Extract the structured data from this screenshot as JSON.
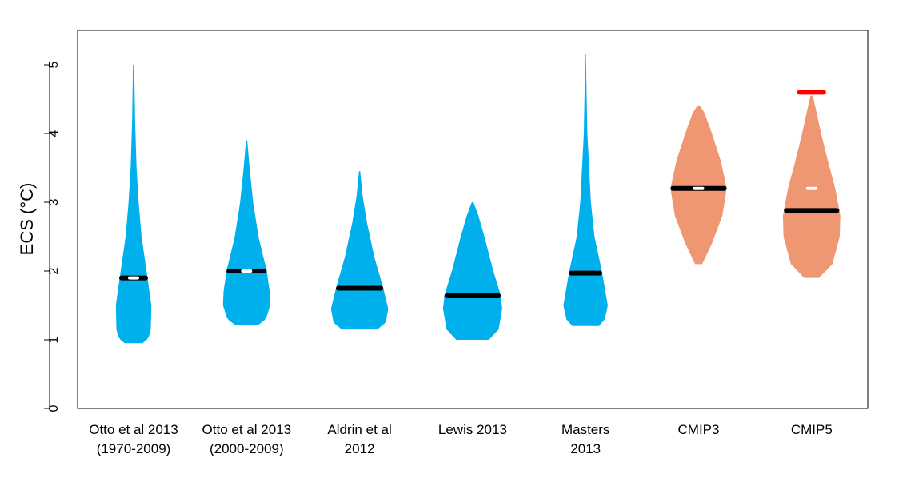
{
  "chart_data": {
    "type": "violin",
    "title": "",
    "xlabel": "",
    "ylabel": "ECS (°C)",
    "ylim": [
      0,
      5.5
    ],
    "yticks": [
      "0",
      "1",
      "2",
      "3",
      "4",
      "5"
    ],
    "grid": false,
    "colors": {
      "observational": "#00b0ec",
      "model": "#ee9772",
      "median": "#000000",
      "mean": "#ffffff",
      "marker": "#ff0000"
    },
    "series": [
      {
        "label_lines": [
          "Otto et al 2013",
          "(1970-2009)"
        ],
        "group": "observational",
        "median": 1.9,
        "mean": 1.9,
        "density": [
          [
            0.95,
            0.3
          ],
          [
            1.02,
            0.5
          ],
          [
            1.15,
            0.58
          ],
          [
            1.5,
            0.6
          ],
          [
            1.9,
            0.47
          ],
          [
            2.5,
            0.27
          ],
          [
            3.0,
            0.17
          ],
          [
            3.5,
            0.1
          ],
          [
            4.2,
            0.05
          ],
          [
            5.0,
            0.02
          ]
        ]
      },
      {
        "label_lines": [
          "Otto et al 2013",
          "(2000-2009)"
        ],
        "group": "observational",
        "median": 2.0,
        "mean": 2.0,
        "density": [
          [
            1.22,
            0.4
          ],
          [
            1.3,
            0.65
          ],
          [
            1.5,
            0.8
          ],
          [
            1.7,
            0.78
          ],
          [
            2.0,
            0.68
          ],
          [
            2.5,
            0.4
          ],
          [
            3.0,
            0.22
          ],
          [
            3.5,
            0.1
          ],
          [
            3.9,
            0.02
          ]
        ]
      },
      {
        "label_lines": [
          "Aldrin et al",
          "2012"
        ],
        "group": "observational",
        "median": 1.75,
        "mean": null,
        "density": [
          [
            1.15,
            0.6
          ],
          [
            1.25,
            0.88
          ],
          [
            1.45,
            0.97
          ],
          [
            1.75,
            0.8
          ],
          [
            2.2,
            0.5
          ],
          [
            2.7,
            0.25
          ],
          [
            3.1,
            0.1
          ],
          [
            3.45,
            0.02
          ]
        ]
      },
      {
        "label_lines": [
          "Lewis 2013"
        ],
        "group": "observational",
        "median": 1.64,
        "mean": null,
        "density": [
          [
            1.0,
            0.55
          ],
          [
            1.15,
            0.88
          ],
          [
            1.45,
            1.0
          ],
          [
            1.65,
            0.95
          ],
          [
            2.0,
            0.7
          ],
          [
            2.5,
            0.4
          ],
          [
            2.8,
            0.2
          ],
          [
            3.0,
            0.03
          ]
        ]
      },
      {
        "label_lines": [
          "Masters",
          "2013"
        ],
        "group": "observational",
        "median": 1.97,
        "mean": null,
        "density": [
          [
            1.2,
            0.45
          ],
          [
            1.3,
            0.65
          ],
          [
            1.5,
            0.75
          ],
          [
            2.0,
            0.55
          ],
          [
            2.5,
            0.3
          ],
          [
            3.0,
            0.18
          ],
          [
            4.0,
            0.06
          ],
          [
            5.15,
            0.01
          ]
        ]
      },
      {
        "label_lines": [
          "CMIP3"
        ],
        "group": "model",
        "median": 3.2,
        "mean": 3.2,
        "density": [
          [
            2.1,
            0.12
          ],
          [
            2.4,
            0.45
          ],
          [
            2.8,
            0.8
          ],
          [
            3.2,
            0.95
          ],
          [
            3.6,
            0.75
          ],
          [
            4.0,
            0.45
          ],
          [
            4.3,
            0.2
          ],
          [
            4.4,
            0.05
          ]
        ]
      },
      {
        "label_lines": [
          "CMIP5"
        ],
        "group": "model",
        "median": 2.88,
        "mean": 3.2,
        "marker": 4.6,
        "density": [
          [
            1.9,
            0.25
          ],
          [
            2.1,
            0.7
          ],
          [
            2.5,
            0.95
          ],
          [
            2.8,
            0.97
          ],
          [
            3.2,
            0.8
          ],
          [
            3.6,
            0.55
          ],
          [
            4.0,
            0.32
          ],
          [
            4.3,
            0.17
          ],
          [
            4.55,
            0.04
          ]
        ]
      }
    ]
  }
}
